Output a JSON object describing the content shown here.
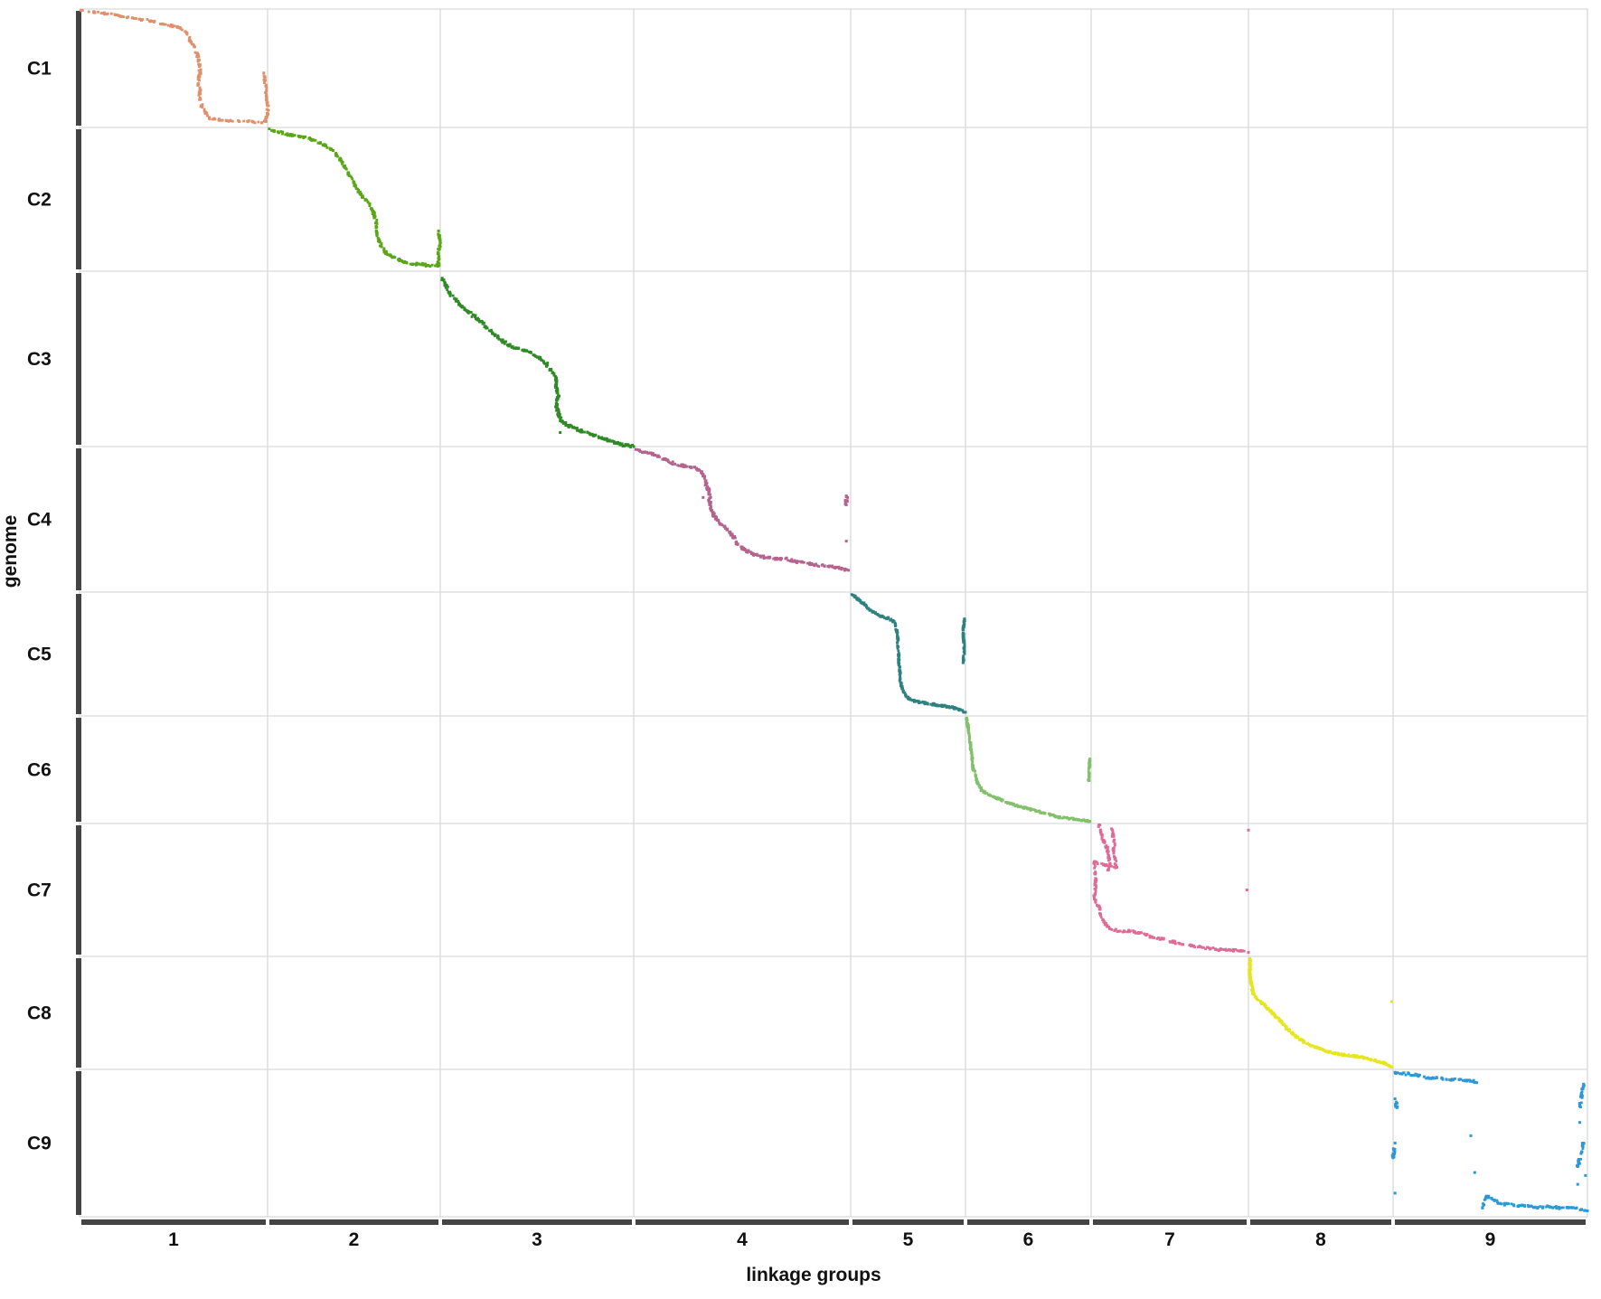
{
  "chart_data": {
    "type": "scatter",
    "title": "",
    "xlabel": "linkage groups",
    "ylabel": "genome",
    "grid": true,
    "x_groups": [
      "1",
      "2",
      "3",
      "4",
      "5",
      "6",
      "7",
      "8",
      "9"
    ],
    "y_groups": [
      "C1",
      "C2",
      "C3",
      "C4",
      "C5",
      "C6",
      "C7",
      "C8",
      "C9"
    ],
    "series": [
      {
        "group": "C1",
        "linkage_group": "1",
        "color": "#e0906a",
        "points": [
          [
            1,
            1
          ],
          [
            8,
            3
          ],
          [
            15,
            4
          ],
          [
            22,
            6
          ],
          [
            30,
            8
          ],
          [
            38,
            10
          ],
          [
            45,
            13
          ],
          [
            52,
            15
          ],
          [
            57,
            20
          ],
          [
            59,
            27
          ],
          [
            61,
            32
          ],
          [
            63,
            40
          ],
          [
            64,
            48
          ],
          [
            64,
            54
          ],
          [
            63,
            63
          ],
          [
            64,
            69
          ],
          [
            64,
            75
          ],
          [
            65,
            82
          ],
          [
            67,
            87
          ],
          [
            68,
            90
          ],
          [
            69,
            92
          ],
          [
            72,
            93
          ],
          [
            78,
            94
          ],
          [
            85,
            95
          ],
          [
            92,
            95
          ],
          [
            97,
            96
          ],
          [
            99,
            95
          ],
          [
            100,
            88
          ],
          [
            100,
            79
          ],
          [
            99,
            65
          ],
          [
            98,
            54
          ]
        ],
        "count": 220
      },
      {
        "group": "C2",
        "linkage_group": "2",
        "color": "#5aa716",
        "points": [
          [
            1,
            1
          ],
          [
            6,
            3
          ],
          [
            12,
            5
          ],
          [
            18,
            6
          ],
          [
            25,
            8
          ],
          [
            32,
            12
          ],
          [
            38,
            16
          ],
          [
            43,
            24
          ],
          [
            47,
            32
          ],
          [
            51,
            41
          ],
          [
            55,
            48
          ],
          [
            59,
            53
          ],
          [
            61,
            58
          ],
          [
            63,
            66
          ],
          [
            63,
            72
          ],
          [
            64,
            77
          ],
          [
            66,
            83
          ],
          [
            69,
            88
          ],
          [
            72,
            90
          ],
          [
            76,
            92
          ],
          [
            79,
            94
          ],
          [
            84,
            95
          ],
          [
            88,
            95
          ],
          [
            93,
            96
          ],
          [
            99,
            96
          ],
          [
            99,
            88
          ],
          [
            100,
            79
          ],
          [
            99,
            72
          ]
        ],
        "count": 260
      },
      {
        "group": "C3",
        "linkage_group": "3",
        "color": "#2f8a25",
        "points": [
          [
            1,
            4
          ],
          [
            3,
            8
          ],
          [
            5,
            13
          ],
          [
            8,
            16
          ],
          [
            11,
            20
          ],
          [
            14,
            23
          ],
          [
            18,
            26
          ],
          [
            22,
            30
          ],
          [
            26,
            34
          ],
          [
            30,
            38
          ],
          [
            35,
            42
          ],
          [
            40,
            44
          ],
          [
            46,
            46
          ],
          [
            51,
            49
          ],
          [
            55,
            53
          ],
          [
            58,
            58
          ],
          [
            60,
            61
          ],
          [
            60,
            66
          ],
          [
            61,
            71
          ],
          [
            60,
            76
          ],
          [
            61,
            81
          ],
          [
            62,
            84
          ],
          [
            63,
            86
          ],
          [
            66,
            88
          ],
          [
            69,
            89
          ],
          [
            72,
            91
          ],
          [
            78,
            93
          ],
          [
            82,
            95
          ],
          [
            85,
            96
          ],
          [
            89,
            97
          ],
          [
            93,
            99
          ],
          [
            96,
            99
          ],
          [
            100,
            100
          ],
          [
            62,
            92
          ]
        ],
        "count": 320
      },
      {
        "group": "C4",
        "linkage_group": "4",
        "color": "#b5638e",
        "points": [
          [
            1,
            2
          ],
          [
            5,
            4
          ],
          [
            10,
            6
          ],
          [
            15,
            9
          ],
          [
            19,
            12
          ],
          [
            22,
            13
          ],
          [
            26,
            14
          ],
          [
            29,
            15
          ],
          [
            32,
            19
          ],
          [
            33,
            24
          ],
          [
            34,
            28
          ],
          [
            35,
            33
          ],
          [
            35,
            40
          ],
          [
            37,
            48
          ],
          [
            40,
            53
          ],
          [
            43,
            57
          ],
          [
            46,
            62
          ],
          [
            48,
            67
          ],
          [
            51,
            71
          ],
          [
            55,
            74
          ],
          [
            60,
            76
          ],
          [
            65,
            77
          ],
          [
            70,
            77
          ],
          [
            75,
            79
          ],
          [
            82,
            81
          ],
          [
            88,
            82
          ],
          [
            94,
            83
          ],
          [
            99,
            85
          ],
          [
            98,
            40
          ],
          [
            98,
            34
          ],
          [
            98,
            65
          ],
          [
            32,
            35
          ]
        ],
        "count": 300
      },
      {
        "group": "C5",
        "linkage_group": "5",
        "color": "#2d8280",
        "points": [
          [
            1,
            2
          ],
          [
            4,
            4
          ],
          [
            8,
            7
          ],
          [
            12,
            10
          ],
          [
            15,
            13
          ],
          [
            19,
            16
          ],
          [
            25,
            19
          ],
          [
            32,
            21
          ],
          [
            37,
            23
          ],
          [
            39,
            26
          ],
          [
            40,
            31
          ],
          [
            41,
            36
          ],
          [
            41,
            44
          ],
          [
            42,
            52
          ],
          [
            42,
            58
          ],
          [
            43,
            64
          ],
          [
            43,
            70
          ],
          [
            44,
            75
          ],
          [
            46,
            80
          ],
          [
            48,
            84
          ],
          [
            51,
            86
          ],
          [
            56,
            88
          ],
          [
            61,
            89
          ],
          [
            67,
            90
          ],
          [
            74,
            91
          ],
          [
            81,
            92
          ],
          [
            88,
            93
          ],
          [
            94,
            95
          ],
          [
            100,
            97
          ],
          [
            99,
            22
          ],
          [
            98,
            33
          ],
          [
            99,
            48
          ],
          [
            98,
            57
          ]
        ],
        "count": 300
      },
      {
        "group": "C6",
        "linkage_group": "6",
        "color": "#82c06c",
        "points": [
          [
            1,
            2
          ],
          [
            2,
            10
          ],
          [
            3,
            18
          ],
          [
            4,
            28
          ],
          [
            5,
            38
          ],
          [
            6,
            48
          ],
          [
            8,
            55
          ],
          [
            9,
            61
          ],
          [
            11,
            65
          ],
          [
            13,
            69
          ],
          [
            17,
            72
          ],
          [
            22,
            75
          ],
          [
            28,
            78
          ],
          [
            35,
            81
          ],
          [
            42,
            84
          ],
          [
            49,
            86
          ],
          [
            56,
            88
          ],
          [
            62,
            90
          ],
          [
            68,
            92
          ],
          [
            74,
            94
          ],
          [
            81,
            95
          ],
          [
            88,
            96
          ],
          [
            94,
            97
          ],
          [
            99,
            98
          ],
          [
            99,
            40
          ],
          [
            98,
            60
          ]
        ],
        "count": 280
      },
      {
        "group": "C7",
        "linkage_group": "7",
        "color": "#df6b96",
        "points": [
          [
            5,
            1
          ],
          [
            6,
            5
          ],
          [
            7,
            10
          ],
          [
            8,
            14
          ],
          [
            10,
            18
          ],
          [
            11,
            24
          ],
          [
            12,
            30
          ],
          [
            11,
            35
          ],
          [
            13,
            4
          ],
          [
            14,
            9
          ],
          [
            15,
            15
          ],
          [
            14,
            20
          ],
          [
            15,
            26
          ],
          [
            16,
            33
          ],
          [
            2,
            29
          ],
          [
            3,
            44
          ],
          [
            2,
            57
          ],
          [
            5,
            62
          ],
          [
            6,
            69
          ],
          [
            9,
            76
          ],
          [
            12,
            79
          ],
          [
            18,
            81
          ],
          [
            24,
            81
          ],
          [
            30,
            82
          ],
          [
            35,
            84
          ],
          [
            40,
            86
          ],
          [
            46,
            87
          ],
          [
            52,
            89
          ],
          [
            58,
            91
          ],
          [
            64,
            92
          ],
          [
            70,
            93
          ],
          [
            76,
            94
          ],
          [
            82,
            95
          ],
          [
            88,
            95
          ],
          [
            94,
            96
          ],
          [
            100,
            97
          ],
          [
            100,
            5
          ],
          [
            99,
            50
          ]
        ],
        "count": 260
      },
      {
        "group": "C8",
        "linkage_group": "8",
        "color": "#e6e61e",
        "points": [
          [
            1,
            2
          ],
          [
            1,
            6
          ],
          [
            1,
            12
          ],
          [
            1,
            18
          ],
          [
            2,
            24
          ],
          [
            3,
            32
          ],
          [
            6,
            38
          ],
          [
            10,
            42
          ],
          [
            14,
            47
          ],
          [
            18,
            52
          ],
          [
            22,
            57
          ],
          [
            26,
            63
          ],
          [
            31,
            69
          ],
          [
            36,
            74
          ],
          [
            42,
            78
          ],
          [
            48,
            81
          ],
          [
            54,
            84
          ],
          [
            60,
            86
          ],
          [
            66,
            87
          ],
          [
            72,
            88
          ],
          [
            78,
            89
          ],
          [
            84,
            91
          ],
          [
            90,
            93
          ],
          [
            95,
            95
          ],
          [
            99,
            98
          ],
          [
            99,
            40
          ]
        ],
        "count": 300
      },
      {
        "group": "C9",
        "linkage_group": "9",
        "color": "#2b99d6",
        "points": [
          [
            1,
            2
          ],
          [
            4,
            3
          ],
          [
            8,
            3
          ],
          [
            12,
            4
          ],
          [
            16,
            5
          ],
          [
            20,
            6
          ],
          [
            25,
            6
          ],
          [
            30,
            7
          ],
          [
            34,
            7
          ],
          [
            38,
            8
          ],
          [
            41,
            8
          ],
          [
            43,
            9
          ],
          [
            1,
            20
          ],
          [
            2,
            26
          ],
          [
            1,
            50
          ],
          [
            0,
            60
          ],
          [
            1,
            84
          ],
          [
            40,
            45
          ],
          [
            42,
            70
          ],
          [
            46,
            94
          ],
          [
            48,
            86
          ],
          [
            55,
            91
          ],
          [
            62,
            92
          ],
          [
            70,
            93
          ],
          [
            74,
            94
          ],
          [
            80,
            93
          ],
          [
            86,
            94
          ],
          [
            92,
            94
          ],
          [
            97,
            95
          ],
          [
            100,
            96
          ],
          [
            98,
            10
          ],
          [
            96,
            25
          ],
          [
            95,
            66
          ],
          [
            98,
            50
          ],
          [
            99,
            72
          ],
          [
            96,
            36
          ],
          [
            95,
            78
          ]
        ],
        "count": 220
      }
    ]
  }
}
